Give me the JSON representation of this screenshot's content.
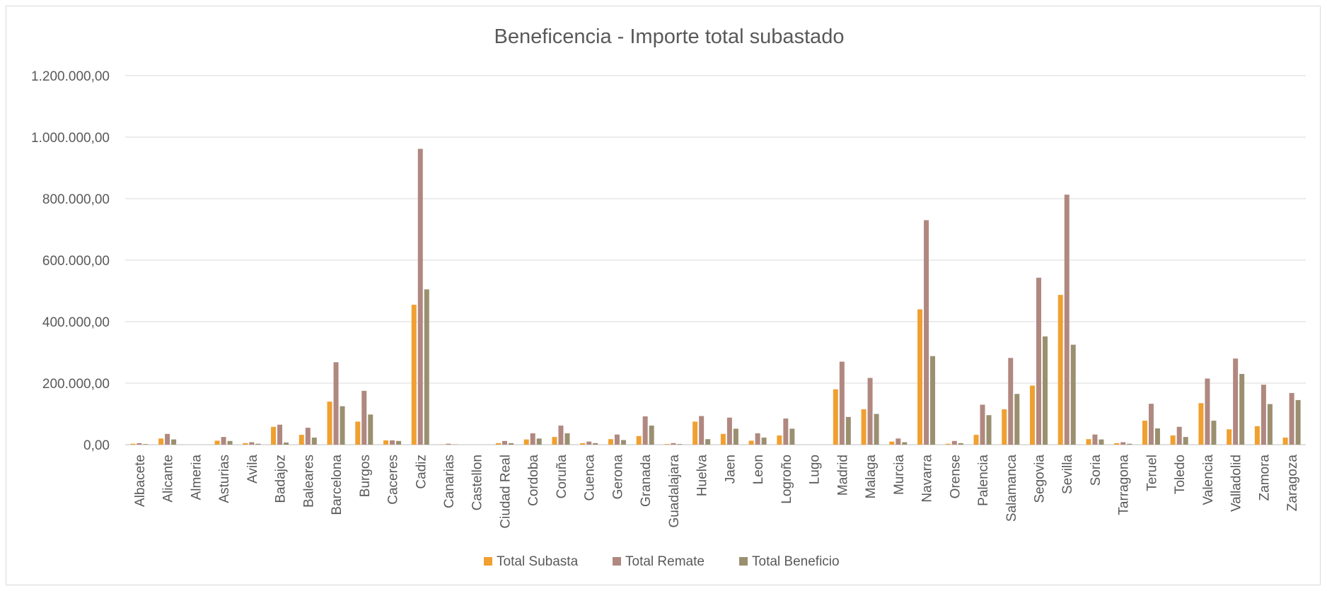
{
  "chart_data": {
    "type": "bar",
    "title": "Beneficencia - Importe total subastado",
    "xlabel": "",
    "ylabel": "",
    "ylim": [
      0,
      1200000
    ],
    "yticks": [
      0,
      200000,
      400000,
      600000,
      800000,
      1000000,
      1200000
    ],
    "ytick_labels": [
      "0,00",
      "200.000,00",
      "400.000,00",
      "600.000,00",
      "800.000,00",
      "1.000.000,00",
      "1.200.000,00"
    ],
    "grid": true,
    "legend_position": "bottom",
    "categories": [
      "Albacete",
      "Alicante",
      "Almeria",
      "Asturias",
      "Avila",
      "Badajoz",
      "Baleares",
      "Barcelona",
      "Burgos",
      "Caceres",
      "Cadiz",
      "Canarias",
      "Castellon",
      "Ciudad Real",
      "Cordoba",
      "Coruña",
      "Cuenca",
      "Gerona",
      "Granada",
      "Guadalajara",
      "Huelva",
      "Jaen",
      "Leon",
      "Logroño",
      "Lugo",
      "Madrid",
      "Malaga",
      "Murcia",
      "Navarra",
      "Orense",
      "Palencia",
      "Salamanca",
      "Segovia",
      "Sevilla",
      "Soria",
      "Tarragona",
      "Teruel",
      "Toledo",
      "Valencia",
      "Valladolid",
      "Zamora",
      "Zaragoza"
    ],
    "series": [
      {
        "name": "Total Subasta",
        "color": "#f0a030",
        "values": [
          3000,
          20000,
          0,
          13000,
          5000,
          58000,
          32000,
          140000,
          75000,
          14000,
          455000,
          1000,
          0,
          5000,
          17000,
          25000,
          5000,
          18000,
          28000,
          2000,
          75000,
          35000,
          13000,
          30000,
          0,
          180000,
          115000,
          10000,
          440000,
          3000,
          32000,
          115000,
          192000,
          487000,
          18000,
          5000,
          78000,
          30000,
          135000,
          50000,
          60000,
          23000
        ]
      },
      {
        "name": "Total Remate",
        "color": "#b08880",
        "values": [
          5000,
          35000,
          0,
          25000,
          8000,
          65000,
          55000,
          268000,
          175000,
          14000,
          962000,
          3000,
          0,
          12000,
          37000,
          62000,
          10000,
          33000,
          92000,
          5000,
          93000,
          88000,
          37000,
          85000,
          0,
          270000,
          217000,
          20000,
          730000,
          12000,
          130000,
          282000,
          543000,
          813000,
          33000,
          8000,
          133000,
          58000,
          215000,
          280000,
          195000,
          168000
        ]
      },
      {
        "name": "Total Beneficio",
        "color": "#9a9070",
        "values": [
          2000,
          17000,
          0,
          12000,
          3000,
          7000,
          23000,
          125000,
          98000,
          12000,
          505000,
          1000,
          0,
          5000,
          20000,
          37000,
          5000,
          15000,
          62000,
          2000,
          18000,
          52000,
          23000,
          52000,
          0,
          90000,
          100000,
          8000,
          288000,
          5000,
          96000,
          165000,
          352000,
          325000,
          17000,
          3000,
          53000,
          25000,
          78000,
          230000,
          132000,
          145000
        ]
      }
    ]
  }
}
